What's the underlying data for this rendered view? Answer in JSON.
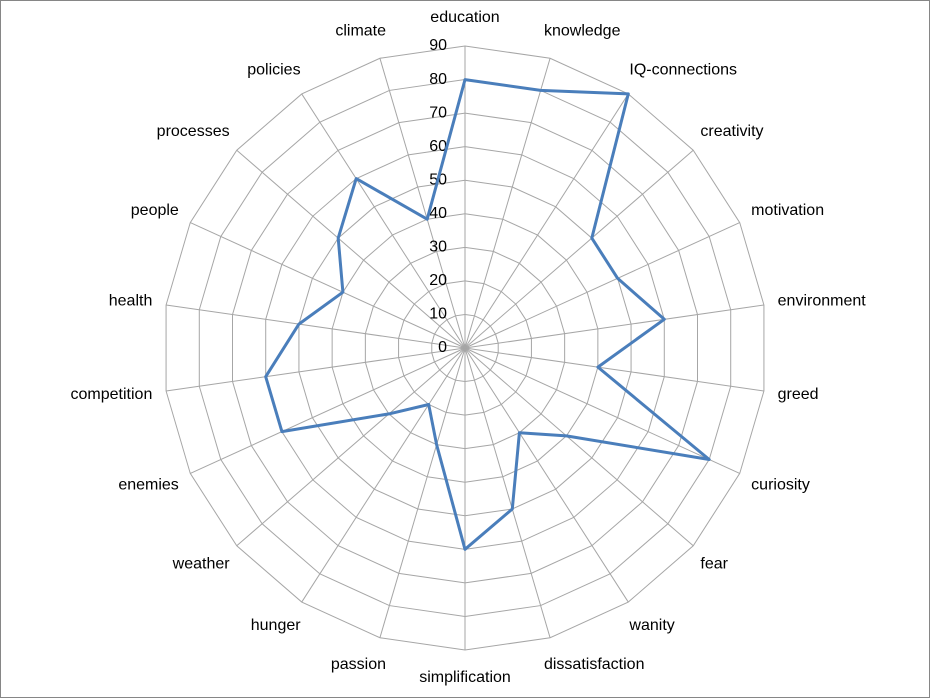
{
  "chart_data": {
    "type": "radar",
    "categories": [
      "education",
      "knowledge",
      "IQ-connections",
      "creativity",
      "motivation",
      "environment",
      "greed",
      "curiosity",
      "fear",
      "wanity",
      "dissatisfaction",
      "simplification",
      "passion",
      "hunger",
      "weather",
      "enemies",
      "competition",
      "health",
      "people",
      "processes",
      "policies",
      "climate"
    ],
    "values": [
      80,
      80,
      90,
      50,
      50,
      60,
      40,
      80,
      40,
      30,
      50,
      60,
      30,
      20,
      30,
      60,
      60,
      50,
      40,
      50,
      60,
      40
    ],
    "color": "#4a7ebb",
    "ylim": [
      0,
      90
    ],
    "yticks": [
      0,
      10,
      20,
      30,
      40,
      50,
      60,
      70,
      80,
      90
    ],
    "grid": true
  }
}
